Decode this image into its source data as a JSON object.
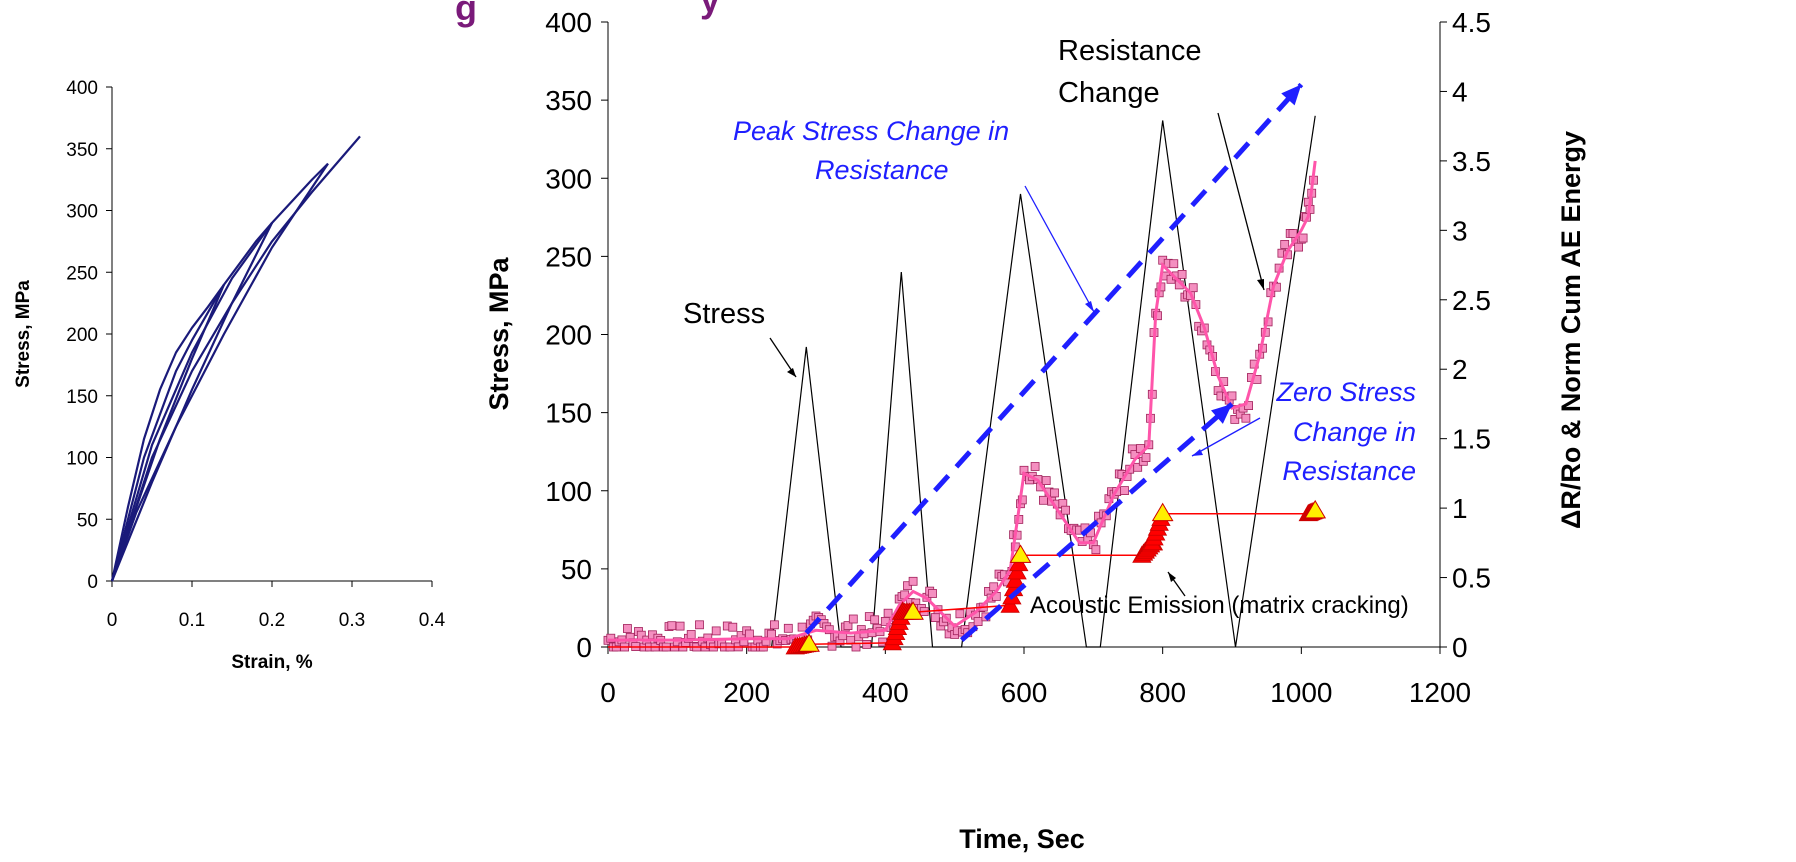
{
  "header_fragment": "g",
  "header_fragment_2": "y",
  "chart_data": [
    {
      "type": "line",
      "title": "",
      "xlabel": "Strain, %",
      "ylabel": "Stress, MPa",
      "xlim": [
        0,
        0.4
      ],
      "ylim": [
        0,
        400
      ],
      "xticks": [
        "0",
        "0.1",
        "0.2",
        "0.3",
        "0.4"
      ],
      "yticks": [
        "0",
        "50",
        "100",
        "150",
        "200",
        "250",
        "300",
        "350",
        "400"
      ],
      "line_color": "#1a1a7a",
      "series": [
        {
          "x": [
            0,
            0.02,
            0.04,
            0.06,
            0.08,
            0.1,
            0.12,
            0.14
          ],
          "y": [
            0,
            60,
            115,
            155,
            185,
            205,
            222,
            240
          ]
        },
        {
          "x": [
            0.14,
            0.1,
            0.06,
            0.02,
            0
          ],
          "y": [
            240,
            180,
            115,
            40,
            0
          ]
        },
        {
          "x": [
            0,
            0.04,
            0.08,
            0.1,
            0.14,
            0.18,
            0.2
          ],
          "y": [
            0,
            100,
            170,
            195,
            240,
            275,
            290
          ]
        },
        {
          "x": [
            0.2,
            0.15,
            0.1,
            0.05,
            0
          ],
          "y": [
            290,
            225,
            155,
            80,
            0
          ]
        },
        {
          "x": [
            0,
            0.05,
            0.1,
            0.15,
            0.2,
            0.25,
            0.27
          ],
          "y": [
            0,
            110,
            185,
            245,
            290,
            325,
            338
          ]
        },
        {
          "x": [
            0.27,
            0.2,
            0.14,
            0.08,
            0.03,
            0
          ],
          "y": [
            338,
            270,
            200,
            125,
            55,
            0
          ]
        },
        {
          "x": [
            0,
            0.05,
            0.1,
            0.15,
            0.2,
            0.25,
            0.31
          ],
          "y": [
            0,
            100,
            170,
            225,
            275,
            315,
            360
          ]
        }
      ]
    },
    {
      "type": "line",
      "title": "",
      "xlabel": "Time, Sec",
      "ylabel": "Stress, MPa",
      "y2label": "ΔR/Ro & Norm Cum AE Energy",
      "xlim": [
        0,
        1200
      ],
      "ylim": [
        0,
        400
      ],
      "y2lim": [
        0,
        4.5
      ],
      "xticks": [
        "0",
        "200",
        "400",
        "600",
        "800",
        "1000",
        "1200"
      ],
      "yticks": [
        "0",
        "50",
        "100",
        "150",
        "200",
        "250",
        "300",
        "350",
        "400"
      ],
      "y2ticks": [
        "0",
        "0.5",
        "1",
        "1.5",
        "2",
        "2.5",
        "3",
        "3.5",
        "4",
        "4.5"
      ],
      "series": [
        {
          "name": "Stress",
          "color": "#000000",
          "x": [
            0,
            236,
            286,
            336,
            380,
            423,
            468,
            510,
            595,
            690,
            710,
            800,
            905,
            1020
          ],
          "y": [
            0,
            0,
            192,
            0,
            0,
            240,
            0,
            0,
            290,
            0,
            0,
            337,
            0,
            340
          ]
        },
        {
          "name": "Resistance Change",
          "color": "#ff55aa",
          "x": [
            0,
            100,
            200,
            260,
            300,
            350,
            400,
            420,
            440,
            460,
            480,
            500,
            530,
            560,
            580,
            590,
            600,
            620,
            640,
            660,
            680,
            700,
            730,
            760,
            780,
            790,
            800,
            820,
            840,
            860,
            880,
            900,
            920,
            940,
            960,
            980,
            1000,
            1010,
            1020
          ],
          "y2": [
            0.05,
            0.05,
            0.06,
            0.06,
            0.12,
            0.1,
            0.12,
            0.3,
            0.4,
            0.35,
            0.25,
            0.15,
            0.25,
            0.4,
            0.55,
            0.9,
            1.25,
            1.2,
            1.05,
            0.9,
            0.75,
            0.75,
            1.1,
            1.35,
            1.45,
            2.4,
            2.75,
            2.65,
            2.55,
            2.3,
            1.95,
            1.72,
            1.75,
            2.1,
            2.6,
            2.85,
            3.0,
            3.1,
            3.5
          ]
        },
        {
          "name": "Acoustic Emission",
          "color": "#ff0000",
          "x": [
            0,
            270,
            290,
            410,
            425,
            440,
            580,
            595,
            770,
            785,
            800,
            1010,
            1020
          ],
          "y2": [
            0,
            0,
            0.02,
            0.03,
            0.25,
            0.25,
            0.3,
            0.66,
            0.66,
            0.75,
            0.96,
            0.96,
            0.98
          ]
        }
      ],
      "trend_lines": [
        {
          "label": "Peak Stress Change in Resistance",
          "x": [
            286,
            1000
          ],
          "y2": [
            0.1,
            4.05
          ]
        },
        {
          "label": "Zero Stress Change in Resistance",
          "x": [
            510,
            900
          ],
          "y2": [
            0.05,
            1.75
          ]
        }
      ],
      "annotations": [
        {
          "text": "Stress"
        },
        {
          "text_line1": "Resistance",
          "text_line2": "Change"
        },
        {
          "text_line1": "Peak Stress Change in",
          "text_line2": "Resistance"
        },
        {
          "text_line1": "Zero Stress",
          "text_line2": "Change in",
          "text_line3": "Resistance"
        },
        {
          "text": "Acoustic Emission (matrix cracking)"
        }
      ]
    }
  ]
}
